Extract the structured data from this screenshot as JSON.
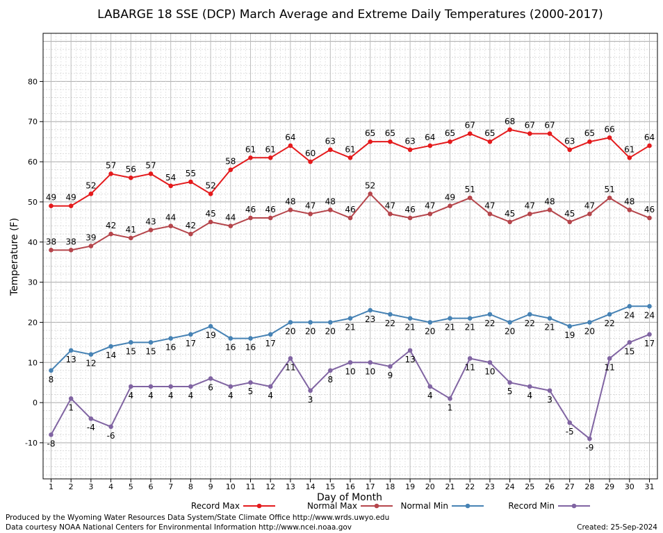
{
  "chart_data": {
    "type": "line",
    "title": "LABARGE 18 SSE (DCP) March Average and Extreme Daily Temperatures (2000-2017)",
    "xlabel": "Day of Month",
    "ylabel": "Temperature (F)",
    "x": [
      1,
      2,
      3,
      4,
      5,
      6,
      7,
      8,
      9,
      10,
      11,
      12,
      13,
      14,
      15,
      16,
      17,
      18,
      19,
      20,
      21,
      22,
      23,
      24,
      25,
      26,
      27,
      28,
      29,
      30,
      31
    ],
    "xlim": [
      0.6,
      31.4
    ],
    "ylim": [
      -19,
      92
    ],
    "yticks": [
      -10,
      0,
      10,
      20,
      30,
      40,
      50,
      60,
      70,
      80
    ],
    "grid": true,
    "legend_position": "bottom",
    "series": [
      {
        "name": "Record Max",
        "color": "#e41a1c",
        "label_position": "above",
        "values": [
          49,
          49,
          52,
          57,
          56,
          57,
          54,
          55,
          52,
          58,
          61,
          61,
          64,
          60,
          63,
          61,
          65,
          65,
          63,
          64,
          65,
          67,
          65,
          68,
          67,
          67,
          63,
          65,
          66,
          61,
          64
        ]
      },
      {
        "name": "Normal Max",
        "color": "#b5454b",
        "label_position": "above",
        "values": [
          38,
          38,
          39,
          42,
          41,
          43,
          44,
          42,
          45,
          44,
          46,
          46,
          48,
          47,
          48,
          46,
          52,
          47,
          46,
          47,
          49,
          51,
          47,
          45,
          47,
          48,
          45,
          47,
          51,
          48,
          46
        ]
      },
      {
        "name": "Normal Min",
        "color": "#4682b4",
        "label_position": "below",
        "values": [
          8,
          13,
          12,
          14,
          15,
          15,
          16,
          17,
          19,
          16,
          16,
          17,
          20,
          20,
          20,
          21,
          23,
          22,
          21,
          20,
          21,
          21,
          22,
          20,
          22,
          21,
          19,
          20,
          22,
          24,
          24
        ]
      },
      {
        "name": "Record Min",
        "color": "#8064a2",
        "label_position": "below",
        "values": [
          -8,
          1,
          -4,
          -6,
          4,
          4,
          4,
          4,
          6,
          4,
          5,
          4,
          11,
          3,
          8,
          10,
          10,
          9,
          13,
          4,
          1,
          11,
          10,
          5,
          4,
          3,
          -5,
          -9,
          11,
          15,
          17
        ]
      }
    ]
  },
  "footer": {
    "line1": "Produced by the Wyoming Water Resources Data System/State Climate Office http://www.wrds.uwyo.edu",
    "line2": "Data courtesy NOAA National Centers for Environmental Information http://www.ncei.noaa.gov",
    "created": "Created:  25-Sep-2024"
  }
}
